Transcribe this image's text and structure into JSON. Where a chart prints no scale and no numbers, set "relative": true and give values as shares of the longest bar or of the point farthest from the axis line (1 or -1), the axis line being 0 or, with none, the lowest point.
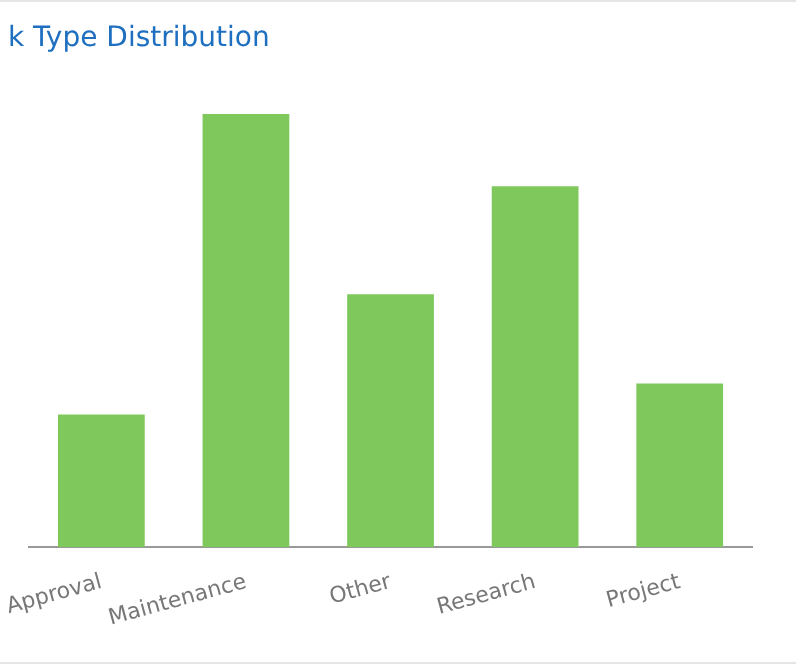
{
  "chart_data": {
    "type": "bar",
    "title": "k Type Distribution",
    "categories": [
      "Approval",
      "Maintenance",
      "Other",
      "Research",
      "Project"
    ],
    "values": [
      0.306,
      1,
      0.584,
      0.833,
      0.378
    ],
    "color": "#7ec85c",
    "relative": true,
    "legend": false
  }
}
